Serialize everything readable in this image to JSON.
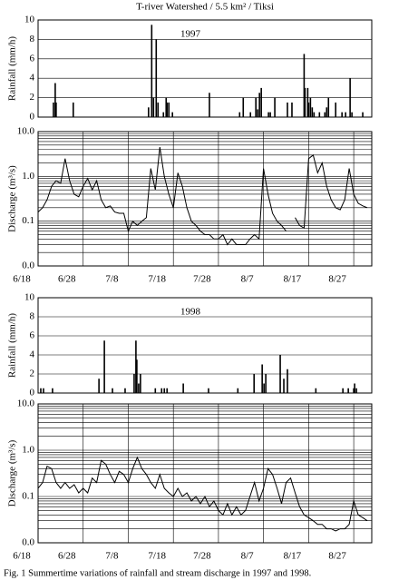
{
  "chart_data": [
    {
      "type": "bar",
      "title": "T-river Watershed / 5.5 km² / Tiksi",
      "annotation": "1997",
      "ylabel": "Rainfall  (mm/h)",
      "color": "#000000",
      "grid": true,
      "xlim": [
        0,
        74
      ],
      "ylim": [
        0,
        10
      ],
      "yticks": [
        0,
        2,
        4,
        6,
        8,
        10
      ],
      "x": [
        3.4,
        3.8,
        4.0,
        7.8,
        24.5,
        25.2,
        25.6,
        26.2,
        26.6,
        27.8,
        28.4,
        28.6,
        29.0,
        29.8,
        38.0,
        44.7,
        45.5,
        47.1,
        48.3,
        48.7,
        49.1,
        49.5,
        51.1,
        51.5,
        52.5,
        55.3,
        56.3,
        59.0,
        59.2,
        59.8,
        60.0,
        60.4,
        60.8,
        61.2,
        62.4,
        63.6,
        64.0,
        64.4,
        66.0,
        67.4,
        68.2,
        69.2,
        69.6,
        72.0
      ],
      "values": [
        1.5,
        3.5,
        1.5,
        1.5,
        1,
        9.5,
        2,
        8,
        1.5,
        0.5,
        2,
        1.5,
        1.5,
        0.5,
        2.5,
        0.5,
        2,
        0.5,
        2,
        0.8,
        2.5,
        3,
        0.5,
        0.5,
        2,
        1.5,
        1.5,
        6.5,
        3,
        3,
        1.5,
        2,
        1,
        0.5,
        0.5,
        0.5,
        1,
        2,
        1.5,
        0.5,
        0.5,
        4,
        0.5,
        0.5
      ]
    },
    {
      "type": "line",
      "ylabel": "Discharge  (m³/s)",
      "color": "#000000",
      "grid": true,
      "log": true,
      "xlim": [
        0,
        74
      ],
      "ylim": [
        0.01,
        10
      ],
      "yticks": [
        {
          "value": 0.01,
          "label": "0.0"
        },
        {
          "value": 0.1,
          "label": "0.1"
        },
        {
          "value": 1,
          "label": "1.0"
        },
        {
          "value": 10,
          "label": "10.0"
        }
      ],
      "yminor": [
        0.02,
        0.03,
        0.04,
        0.05,
        0.06,
        0.07,
        0.08,
        0.09,
        0.2,
        0.3,
        0.4,
        0.5,
        0.6,
        0.7,
        0.8,
        0.9,
        2,
        3,
        4,
        5,
        6,
        7,
        8,
        9
      ],
      "xticks": [
        {
          "value": 0,
          "label": "6/18"
        },
        {
          "value": 10,
          "label": "6/28"
        },
        {
          "value": 20,
          "label": "7/8"
        },
        {
          "value": 30,
          "label": "7/18"
        },
        {
          "value": 40,
          "label": "7/28"
        },
        {
          "value": 50,
          "label": "8/7"
        },
        {
          "value": 60,
          "label": "8/17"
        },
        {
          "value": 70,
          "label": "8/27"
        }
      ],
      "x": [
        0,
        1,
        2,
        3,
        4,
        5,
        6,
        7,
        8,
        9,
        10,
        11,
        12,
        13,
        14,
        15,
        16,
        17,
        18,
        19,
        20,
        21,
        22,
        23,
        24,
        25,
        26,
        27,
        28,
        29,
        30,
        31,
        32,
        33,
        34,
        35,
        36,
        37,
        38,
        39,
        40,
        41,
        42,
        43,
        44,
        45,
        46,
        47,
        48,
        49,
        50,
        51,
        52,
        53,
        54,
        55,
        56,
        57,
        58,
        59,
        60,
        61,
        62,
        63,
        64,
        65,
        66,
        67,
        68,
        69,
        70,
        71,
        72,
        73
      ],
      "values": [
        0.16,
        0.2,
        0.3,
        0.6,
        0.8,
        0.7,
        2.5,
        0.8,
        0.4,
        0.35,
        0.6,
        0.9,
        0.5,
        0.8,
        0.3,
        0.2,
        0.22,
        0.16,
        0.15,
        0.15,
        0.06,
        0.1,
        0.08,
        0.1,
        0.12,
        1.5,
        0.5,
        4.5,
        1.0,
        0.4,
        0.2,
        1.2,
        0.6,
        0.2,
        0.1,
        0.08,
        0.06,
        0.05,
        0.05,
        0.04,
        0.04,
        0.05,
        0.03,
        0.04,
        0.03,
        0.03,
        0.03,
        0.04,
        0.05,
        0.04,
        1.5,
        0.4,
        0.15,
        0.1,
        0.08,
        0.06,
        null,
        0.12,
        0.08,
        0.07,
        2.5,
        3,
        1.2,
        2,
        0.6,
        0.3,
        0.2,
        0.18,
        0.3,
        1.5,
        0.4,
        0.25,
        0.22,
        0.2
      ]
    },
    {
      "type": "bar",
      "annotation": "1998",
      "ylabel": "Rainfall  (mm/h)",
      "color": "#000000",
      "grid": true,
      "xlim": [
        0,
        74
      ],
      "ylim": [
        0,
        10
      ],
      "yticks": [
        0,
        2,
        4,
        6,
        8,
        10
      ],
      "x": [
        0.6,
        1.2,
        3.2,
        13.5,
        14.7,
        16.5,
        19.3,
        21.3,
        21.7,
        21.9,
        22.3,
        22.7,
        26.0,
        27.4,
        28.0,
        28.6,
        32.2,
        37.8,
        44.3,
        47.9,
        49.7,
        50.1,
        50.5,
        53.7,
        54.5,
        55.3,
        61.6,
        67.6,
        68.8,
        70.0,
        70.2,
        70.6
      ],
      "values": [
        0.5,
        0.5,
        0.5,
        1.5,
        5.5,
        0.5,
        0.5,
        2,
        5.5,
        3.5,
        1,
        2,
        0.5,
        0.5,
        0.5,
        0.5,
        1,
        0.5,
        0.5,
        2,
        3,
        1,
        2,
        4,
        1.5,
        2.5,
        0.5,
        0.5,
        0.5,
        0.5,
        1,
        0.5
      ]
    },
    {
      "type": "line",
      "ylabel": "Discharge  (m³/s)",
      "color": "#000000",
      "grid": true,
      "log": true,
      "xlim": [
        0,
        74
      ],
      "ylim": [
        0.01,
        10
      ],
      "yticks": [
        {
          "value": 0.01,
          "label": "0.0"
        },
        {
          "value": 0.1,
          "label": "0.1"
        },
        {
          "value": 1,
          "label": "1.0"
        },
        {
          "value": 10,
          "label": "10.0"
        }
      ],
      "yminor": [
        0.02,
        0.03,
        0.04,
        0.05,
        0.06,
        0.07,
        0.08,
        0.09,
        0.2,
        0.3,
        0.4,
        0.5,
        0.6,
        0.7,
        0.8,
        0.9,
        2,
        3,
        4,
        5,
        6,
        7,
        8,
        9
      ],
      "xticks": [
        {
          "value": 0,
          "label": "6/18"
        },
        {
          "value": 10,
          "label": "6/28"
        },
        {
          "value": 20,
          "label": "7/8"
        },
        {
          "value": 30,
          "label": "7/18"
        },
        {
          "value": 40,
          "label": "7/28"
        },
        {
          "value": 50,
          "label": "8/7"
        },
        {
          "value": 60,
          "label": "8/17"
        },
        {
          "value": 70,
          "label": "8/27"
        }
      ],
      "x": [
        0,
        1,
        2,
        3,
        4,
        5,
        6,
        7,
        8,
        9,
        10,
        11,
        12,
        13,
        14,
        15,
        16,
        17,
        18,
        19,
        20,
        21,
        22,
        23,
        24,
        25,
        26,
        27,
        28,
        29,
        30,
        31,
        32,
        33,
        34,
        35,
        36,
        37,
        38,
        39,
        40,
        41,
        42,
        43,
        44,
        45,
        46,
        47,
        48,
        49,
        50,
        51,
        52,
        53,
        54,
        55,
        56,
        57,
        58,
        59,
        60,
        61,
        62,
        63,
        64,
        65,
        66,
        67,
        68,
        69,
        70,
        71,
        72,
        73
      ],
      "values": [
        0.15,
        0.2,
        0.45,
        0.4,
        0.2,
        0.15,
        0.2,
        0.15,
        0.18,
        0.12,
        0.15,
        0.12,
        0.25,
        0.2,
        0.6,
        0.5,
        0.3,
        0.2,
        0.35,
        0.3,
        0.2,
        0.4,
        0.7,
        0.4,
        0.3,
        0.2,
        0.15,
        0.3,
        0.15,
        0.12,
        0.1,
        0.15,
        0.1,
        0.12,
        0.08,
        0.1,
        0.07,
        0.1,
        0.06,
        0.08,
        0.05,
        0.04,
        0.07,
        0.04,
        0.06,
        0.04,
        0.05,
        0.1,
        0.2,
        0.08,
        0.15,
        0.4,
        0.3,
        0.15,
        0.07,
        0.2,
        0.25,
        0.12,
        0.06,
        0.04,
        0.035,
        0.03,
        0.025,
        0.025,
        0.02,
        0.02,
        0.018,
        0.02,
        0.02,
        0.025,
        0.08,
        0.04,
        0.035,
        0.03
      ]
    }
  ],
  "caption": "Fig. 1  Summertime variations of rainfall and stream discharge in 1997 and 1998."
}
